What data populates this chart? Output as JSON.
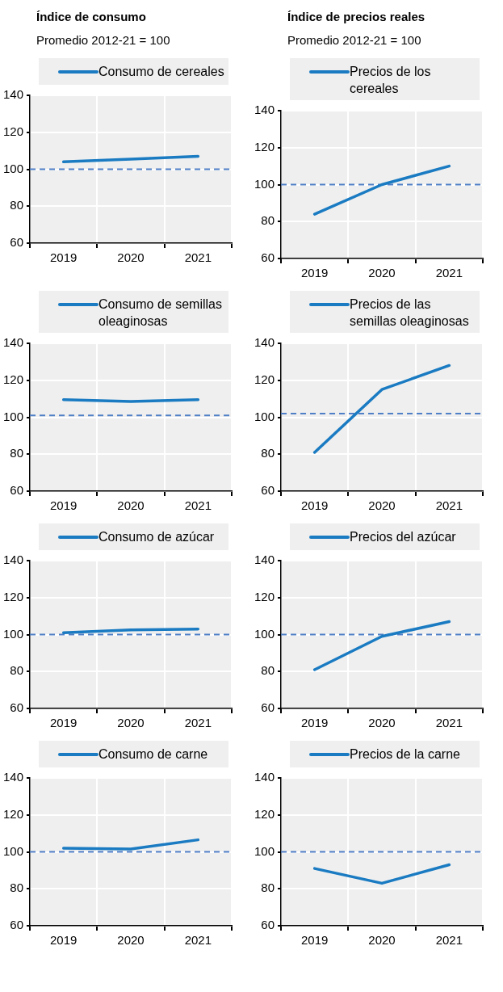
{
  "chart_data": [
    {
      "type": "line",
      "title": "Índice de consumo",
      "subtitle": "Promedio 2012-21 = 100",
      "categories": [
        "2019",
        "2020",
        "2021"
      ],
      "series": [
        {
          "name": "Consumo de cereales",
          "color": "#1a7bc2",
          "values": [
            104,
            105.5,
            107
          ]
        }
      ],
      "ylim": [
        60,
        140
      ],
      "yticks": [
        60,
        80,
        100,
        120,
        140
      ],
      "ref_lines": [
        {
          "axis": "y",
          "value": 100,
          "color": "#4f7fc6",
          "line_style": "dashed"
        }
      ],
      "grid": true,
      "legend": "top",
      "line_style": "solid"
    },
    {
      "type": "line",
      "title": "Índice de precios reales",
      "subtitle": "Promedio 2012-21 = 100",
      "categories": [
        "2019",
        "2020",
        "2021"
      ],
      "series": [
        {
          "name": "Precios de los cereales",
          "color": "#1a7bc2",
          "values": [
            84,
            100,
            110
          ]
        }
      ],
      "ylim": [
        60,
        140
      ],
      "yticks": [
        60,
        80,
        100,
        120,
        140
      ],
      "ref_lines": [
        {
          "axis": "y",
          "value": 100,
          "color": "#4f7fc6",
          "line_style": "dashed"
        }
      ],
      "grid": true,
      "legend": "top",
      "line_style": "solid"
    },
    {
      "type": "line",
      "categories": [
        "2019",
        "2020",
        "2021"
      ],
      "series": [
        {
          "name": "Consumo de semillas oleaginosas",
          "color": "#1a7bc2",
          "values": [
            109.5,
            108.5,
            109.5
          ]
        }
      ],
      "ylim": [
        60,
        140
      ],
      "yticks": [
        60,
        80,
        100,
        120,
        140
      ],
      "ref_lines": [
        {
          "axis": "y",
          "value": 101,
          "color": "#4f7fc6",
          "line_style": "dashed"
        }
      ],
      "grid": true,
      "legend": "top",
      "line_style": "solid"
    },
    {
      "type": "line",
      "categories": [
        "2019",
        "2020",
        "2021"
      ],
      "series": [
        {
          "name": "Precios de las semillas oleaginosas",
          "color": "#1a7bc2",
          "values": [
            81,
            115,
            128
          ]
        }
      ],
      "ylim": [
        60,
        140
      ],
      "yticks": [
        60,
        80,
        100,
        120,
        140
      ],
      "ref_lines": [
        {
          "axis": "y",
          "value": 102,
          "color": "#4f7fc6",
          "line_style": "dashed"
        }
      ],
      "grid": true,
      "legend": "top",
      "line_style": "solid"
    },
    {
      "type": "line",
      "categories": [
        "2019",
        "2020",
        "2021"
      ],
      "series": [
        {
          "name": "Consumo de azúcar",
          "color": "#1a7bc2",
          "values": [
            101,
            102.5,
            103
          ]
        }
      ],
      "ylim": [
        60,
        140
      ],
      "yticks": [
        60,
        80,
        100,
        120,
        140
      ],
      "ref_lines": [
        {
          "axis": "y",
          "value": 100,
          "color": "#4f7fc6",
          "line_style": "dashed"
        }
      ],
      "grid": true,
      "legend": "top",
      "line_style": "solid"
    },
    {
      "type": "line",
      "categories": [
        "2019",
        "2020",
        "2021"
      ],
      "series": [
        {
          "name": "Precios del azúcar",
          "color": "#1a7bc2",
          "values": [
            81,
            99,
            107
          ]
        }
      ],
      "ylim": [
        60,
        140
      ],
      "yticks": [
        60,
        80,
        100,
        120,
        140
      ],
      "ref_lines": [
        {
          "axis": "y",
          "value": 100,
          "color": "#4f7fc6",
          "line_style": "dashed"
        }
      ],
      "grid": true,
      "legend": "top",
      "line_style": "solid"
    },
    {
      "type": "line",
      "categories": [
        "2019",
        "2020",
        "2021"
      ],
      "series": [
        {
          "name": "Consumo de carne",
          "color": "#1a7bc2",
          "values": [
            102,
            101.5,
            106.5
          ]
        }
      ],
      "ylim": [
        60,
        140
      ],
      "yticks": [
        60,
        80,
        100,
        120,
        140
      ],
      "ref_lines": [
        {
          "axis": "y",
          "value": 100,
          "color": "#4f7fc6",
          "line_style": "dashed"
        }
      ],
      "grid": true,
      "legend": "top",
      "line_style": "solid"
    },
    {
      "type": "line",
      "categories": [
        "2019",
        "2020",
        "2021"
      ],
      "series": [
        {
          "name": "Precios de la carne",
          "color": "#1a7bc2",
          "values": [
            91,
            83,
            93
          ]
        }
      ],
      "ylim": [
        60,
        140
      ],
      "yticks": [
        60,
        80,
        100,
        120,
        140
      ],
      "ref_lines": [
        {
          "axis": "y",
          "value": 100,
          "color": "#4f7fc6",
          "line_style": "dashed"
        }
      ],
      "grid": true,
      "legend": "top",
      "line_style": "solid"
    }
  ]
}
